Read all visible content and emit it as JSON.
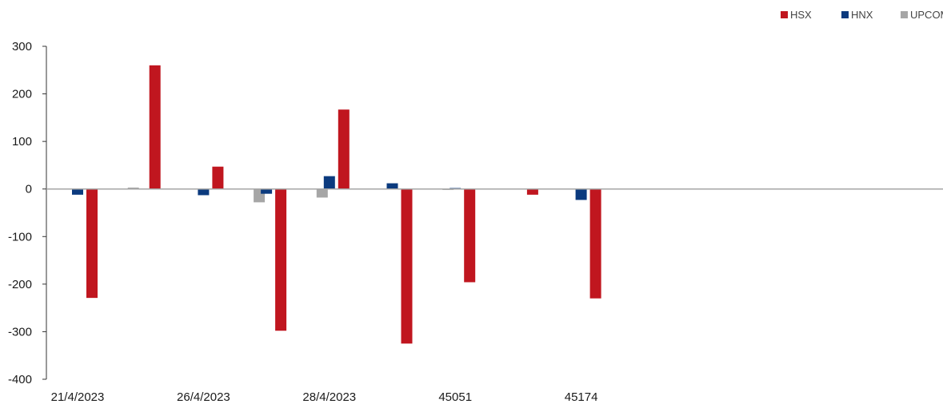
{
  "chart_data": {
    "type": "bar",
    "title": "",
    "xlabel": "",
    "ylabel": "",
    "ylim": [
      -400,
      300
    ],
    "yticks": [
      300,
      200,
      100,
      0,
      -100,
      -200,
      -300,
      -400
    ],
    "legend_position": "top-right",
    "grid": false,
    "categories": [
      "21/4/2023",
      "",
      "26/4/2023",
      "",
      "28/4/2023",
      "",
      "45051",
      "",
      "45174",
      "",
      "",
      "",
      "",
      "",
      ""
    ],
    "series": [
      {
        "name": "UPCOM",
        "color": "#a6a6a6",
        "values": [
          0,
          3,
          0,
          -28,
          -18,
          0,
          -2,
          1,
          0,
          0,
          0,
          0,
          0,
          0,
          0
        ]
      },
      {
        "name": "HNX",
        "color": "#0b3a7e",
        "values": [
          -12,
          0,
          -13,
          -10,
          27,
          12,
          2,
          0,
          -23,
          0,
          0,
          0,
          0,
          0,
          0
        ]
      },
      {
        "name": "HSX",
        "color": "#c0161f",
        "values": [
          -229,
          260,
          47,
          -298,
          167,
          -325,
          -196,
          -12,
          -230,
          0,
          0,
          0,
          0,
          0,
          0
        ]
      }
    ]
  }
}
